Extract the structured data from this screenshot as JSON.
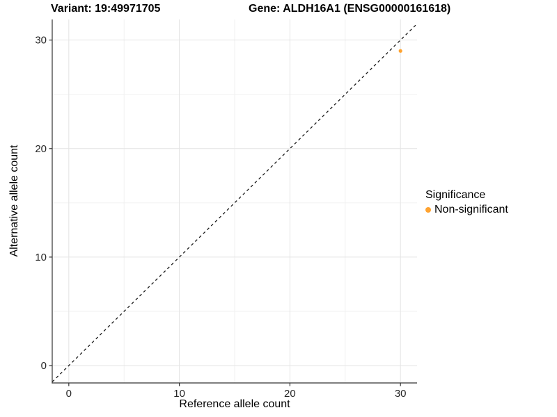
{
  "header": {
    "variant_title": "Variant: 19:49971705",
    "gene_title": "Gene: ALDH16A1 (ENSG00000161618)"
  },
  "chart_data": {
    "type": "scatter",
    "xlabel": "Reference allele count",
    "ylabel": "Alternative allele count",
    "xlim": [
      -1.5,
      31.5
    ],
    "ylim": [
      -1.6,
      31.9
    ],
    "x_ticks": [
      0,
      10,
      20,
      30
    ],
    "y_ticks": [
      0,
      10,
      20,
      30
    ],
    "x_minor_ticks": [
      5,
      15,
      25
    ],
    "y_minor_ticks": [
      5,
      15,
      25
    ],
    "grid": "on",
    "identity_line": {
      "slope": 1,
      "intercept": 0,
      "style": "dashed",
      "color": "#1a1a1a"
    },
    "series": [
      {
        "name": "Non-significant",
        "color": "#FFA330",
        "points": [
          {
            "x": 30,
            "y": 29
          }
        ]
      }
    ],
    "legend": {
      "title": "Significance",
      "position": "right",
      "items": [
        {
          "label": "Non-significant",
          "color": "#FFA330"
        }
      ]
    }
  },
  "colors": {
    "background": "#ffffff",
    "grid_major": "#e4e4e4",
    "grid_minor": "#f1f1f1",
    "axis_line": "#333333",
    "tick_text": "#262626",
    "point_orange": "#FFA330"
  }
}
